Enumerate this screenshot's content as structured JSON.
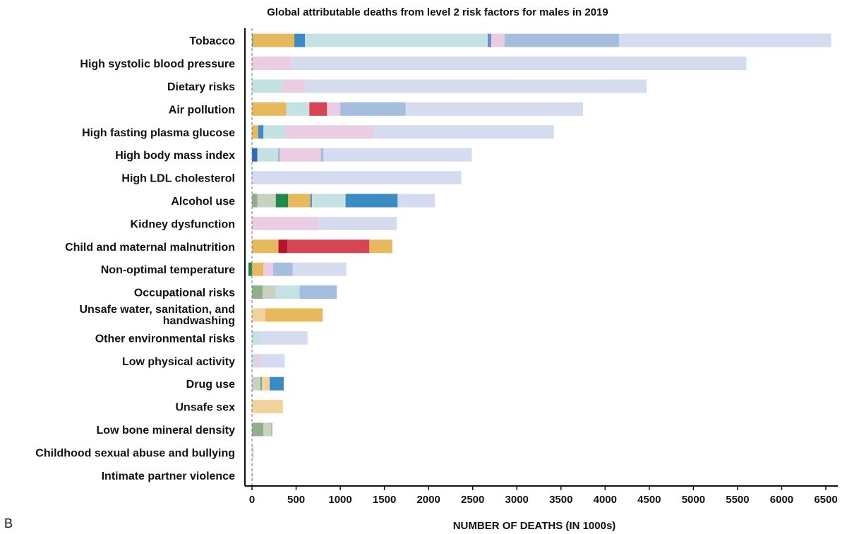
{
  "chart_data": {
    "type": "bar",
    "orientation": "horizontal",
    "stacked": true,
    "title": "Global attributable deaths from level 2 risk factors for males in 2019",
    "xlabel": "NUMBER OF DEATHS (IN 1000s)",
    "panel_label": "B",
    "xlim": [
      -50,
      6550
    ],
    "xticks": [
      0,
      500,
      1000,
      1500,
      2000,
      2500,
      3000,
      3500,
      4000,
      4500,
      5000,
      5500,
      6000,
      6500
    ],
    "grid": false,
    "legend": "none",
    "colors": {
      "cause_a": "#8fb08a",
      "cause_b": "#c7d2c2",
      "cause_c": "#1f8a4c",
      "cause_d": "#e8b95c",
      "cause_e": "#f1d39d",
      "cause_f": "#d64553",
      "cause_g": "#b8132c",
      "cause_h": "#3b8cc4",
      "cause_i": "#c4e2e3",
      "cause_j": "#eacde2",
      "cause_k": "#a5bedf",
      "cause_l": "#d5dcef",
      "cause_m": "#6f8cc6",
      "cause_n": "#2e6db4"
    },
    "categories": [
      {
        "label": "Tobacco",
        "segments": [
          [
            "cause_a",
            15
          ],
          [
            "cause_d",
            465
          ],
          [
            "cause_h",
            120
          ],
          [
            "cause_i",
            2070
          ],
          [
            "cause_m",
            40
          ],
          [
            "cause_j",
            150
          ],
          [
            "cause_k",
            1300
          ],
          [
            "cause_l",
            2400
          ]
        ]
      },
      {
        "label": "High systolic blood pressure",
        "segments": [
          [
            "cause_j",
            450
          ],
          [
            "cause_l",
            5150
          ]
        ]
      },
      {
        "label": "Dietary risks",
        "segments": [
          [
            "cause_i",
            350
          ],
          [
            "cause_j",
            250
          ],
          [
            "cause_l",
            3870
          ]
        ]
      },
      {
        "label": "Air pollution",
        "segments": [
          [
            "cause_d",
            390
          ],
          [
            "cause_i",
            260
          ],
          [
            "cause_f",
            200
          ],
          [
            "cause_j",
            150
          ],
          [
            "cause_k",
            740
          ],
          [
            "cause_l",
            2010
          ]
        ]
      },
      {
        "label": "High fasting plasma glucose",
        "segments": [
          [
            "cause_d",
            70
          ],
          [
            "cause_h",
            60
          ],
          [
            "cause_i",
            250
          ],
          [
            "cause_j",
            1000
          ],
          [
            "cause_l",
            2040
          ]
        ]
      },
      {
        "label": "High body mass index",
        "segments": [
          [
            "cause_n",
            60
          ],
          [
            "cause_i",
            240
          ],
          [
            "cause_m",
            10
          ],
          [
            "cause_j",
            470
          ],
          [
            "cause_k",
            30
          ],
          [
            "cause_l",
            1680
          ]
        ]
      },
      {
        "label": "High LDL cholesterol",
        "segments": [
          [
            "cause_l",
            2370
          ]
        ]
      },
      {
        "label": "Alcohol use",
        "segments": [
          [
            "cause_a",
            60
          ],
          [
            "cause_b",
            210
          ],
          [
            "cause_c",
            140
          ],
          [
            "cause_d",
            250
          ],
          [
            "cause_m",
            20
          ],
          [
            "cause_i",
            380
          ],
          [
            "cause_h",
            590
          ],
          [
            "cause_l",
            420
          ]
        ]
      },
      {
        "label": "Kidney dysfunction",
        "segments": [
          [
            "cause_j",
            750
          ],
          [
            "cause_l",
            890
          ]
        ]
      },
      {
        "label": "Child and maternal malnutrition",
        "segments": [
          [
            "cause_d",
            300
          ],
          [
            "cause_g",
            100
          ],
          [
            "cause_f",
            930
          ],
          [
            "cause_d",
            260
          ]
        ]
      },
      {
        "label": "Non-optimal temperature",
        "segments": [
          [
            "cause_c",
            -40
          ],
          [
            "cause_d",
            130
          ],
          [
            "cause_j",
            110
          ],
          [
            "cause_k",
            220
          ],
          [
            "cause_l",
            610
          ]
        ]
      },
      {
        "label": "Occupational risks",
        "segments": [
          [
            "cause_a",
            120
          ],
          [
            "cause_b",
            150
          ],
          [
            "cause_i",
            270
          ],
          [
            "cause_k",
            420
          ]
        ]
      },
      {
        "label": "Unsafe water, sanitation, and handwashing",
        "label_lines": [
          "Unsafe water, sanitation, and",
          "handwashing"
        ],
        "segments": [
          [
            "cause_e",
            150
          ],
          [
            "cause_d",
            650
          ]
        ]
      },
      {
        "label": "Other environmental risks",
        "segments": [
          [
            "cause_i",
            80
          ],
          [
            "cause_l",
            550
          ]
        ]
      },
      {
        "label": "Low physical activity",
        "segments": [
          [
            "cause_i",
            40
          ],
          [
            "cause_j",
            40
          ],
          [
            "cause_l",
            290
          ]
        ]
      },
      {
        "label": "Drug use",
        "segments": [
          [
            "cause_b",
            100
          ],
          [
            "cause_c",
            10
          ],
          [
            "cause_e",
            90
          ],
          [
            "cause_h",
            160
          ]
        ]
      },
      {
        "label": "Unsafe sex",
        "segments": [
          [
            "cause_e",
            350
          ]
        ]
      },
      {
        "label": "Low bone mineral density",
        "segments": [
          [
            "cause_a",
            130
          ],
          [
            "cause_b",
            90
          ],
          [
            "cause_a",
            10
          ]
        ]
      },
      {
        "label": "Childhood sexual abuse and bullying",
        "segments": [
          [
            "cause_l",
            20
          ]
        ]
      },
      {
        "label": "Intimate partner violence",
        "segments": [
          [
            "cause_l",
            6
          ]
        ]
      }
    ]
  }
}
